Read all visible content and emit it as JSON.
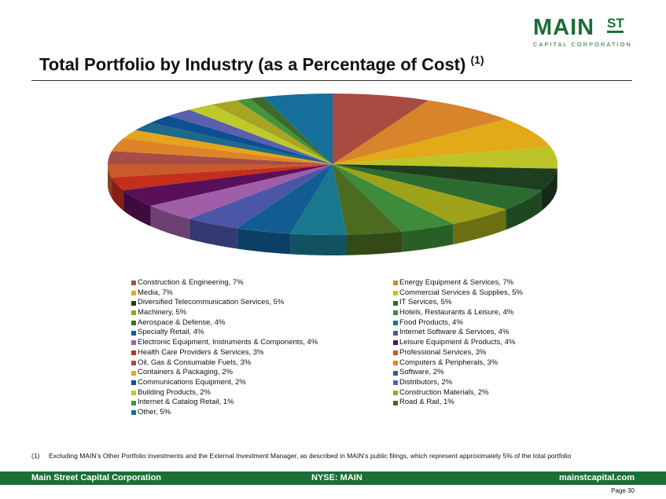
{
  "logo": {
    "main": "MAIN",
    "st": "ST",
    "sub": "CAPITAL CORPORATION"
  },
  "title": {
    "text": "Total Portfolio by Industry (as a Percentage of Cost)",
    "sup": "(1)"
  },
  "chart_data": {
    "type": "pie",
    "title": "Total Portfolio by Industry (as a Percentage of Cost)",
    "style": "3d-tilted",
    "slices": [
      {
        "label": "Construction & Engineering, 7%",
        "value": 7,
        "color": "#a84c42"
      },
      {
        "label": "Energy Equipment & Services, 7%",
        "value": 7,
        "color": "#d8842a"
      },
      {
        "label": "Media, 7%",
        "value": 7,
        "color": "#e2a919"
      },
      {
        "label": "Commercial Services & Supplies, 5%",
        "value": 5,
        "color": "#bcc427"
      },
      {
        "label": "Diversified Telecommunication Services, 5%",
        "value": 5,
        "color": "#1d3e1f"
      },
      {
        "label": "IT Services, 5%",
        "value": 5,
        "color": "#2c6b2f"
      },
      {
        "label": "Machinery, 5%",
        "value": 5,
        "color": "#9da219"
      },
      {
        "label": "Hotels, Restaurants & Leisure, 4%",
        "value": 4,
        "color": "#3c8a3a"
      },
      {
        "label": "Aerospace & Defense, 4%",
        "value": 4,
        "color": "#4b6b20"
      },
      {
        "label": "Food Products, 4%",
        "value": 4,
        "color": "#19788e"
      },
      {
        "label": "Specialty Retail, 4%",
        "value": 4,
        "color": "#125c94"
      },
      {
        "label": "Internet Software & Services, 4%",
        "value": 4,
        "color": "#4b56a6"
      },
      {
        "label": "Electronic Equipment, Instruments & Components, 4%",
        "value": 4,
        "color": "#a15ea8"
      },
      {
        "label": "Leisure Equipment & Products, 4%",
        "value": 4,
        "color": "#5a1058"
      },
      {
        "label": "Health Care Providers & Services, 3%",
        "value": 3,
        "color": "#c42e1c"
      },
      {
        "label": "Professional Services, 3%",
        "value": 3,
        "color": "#c85a2e"
      },
      {
        "label": "Oil, Gas & Consumable Fuels, 3%",
        "value": 3,
        "color": "#a64d48"
      },
      {
        "label": "Computers & Peripherals, 3%",
        "value": 3,
        "color": "#de8328"
      },
      {
        "label": "Containers & Packaging, 2%",
        "value": 2,
        "color": "#e6a41c"
      },
      {
        "label": "Software, 2%",
        "value": 2,
        "color": "#1c6a88"
      },
      {
        "label": "Communications Equipment, 2%",
        "value": 2,
        "color": "#0d4f90"
      },
      {
        "label": "Distributors, 2%",
        "value": 2,
        "color": "#5a5fae"
      },
      {
        "label": "Building Products, 2%",
        "value": 2,
        "color": "#bdca2a"
      },
      {
        "label": "Construction Materials, 2%",
        "value": 2,
        "color": "#a8a424"
      },
      {
        "label": "Internet & Catalog Retail, 1%",
        "value": 1,
        "color": "#43943e"
      },
      {
        "label": "Road & Rail, 1%",
        "value": 1,
        "color": "#3d6a28"
      },
      {
        "label": "Other, 5%",
        "value": 5,
        "color": "#156f9a"
      }
    ]
  },
  "footnote": {
    "num": "(1)",
    "text": "Excluding MAIN’s Other Portfolio investments and the External Investment Manager, as described in MAIN’s public filings, which represent approximately 5% of the total portfolio"
  },
  "footer": {
    "left": "Main Street Capital Corporation",
    "center": "NYSE: MAIN",
    "right": "mainstcapital.com"
  },
  "page": {
    "label": "Page",
    "number": "30"
  }
}
